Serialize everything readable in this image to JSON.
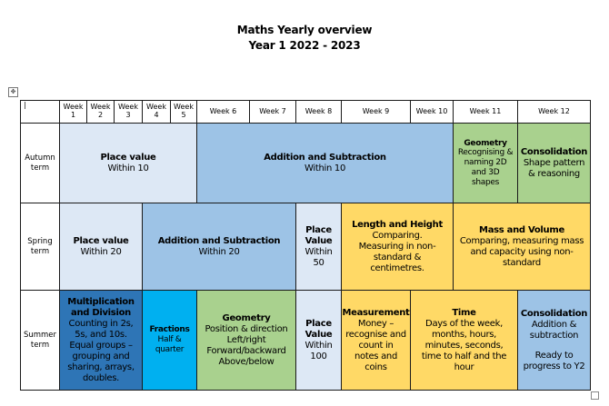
{
  "title": "Maths Yearly overview",
  "subtitle": "Year 1 2022 - 2023",
  "table_move_icon": "four-way-arrow-icon",
  "corner_cell": "|",
  "weeks": [
    {
      "l1": "Week",
      "l2": "1"
    },
    {
      "l1": "Week",
      "l2": "2"
    },
    {
      "l1": "Week",
      "l2": "3"
    },
    {
      "l1": "Week",
      "l2": "4"
    },
    {
      "l1": "Week",
      "l2": "5"
    },
    {
      "l1": "Week 6"
    },
    {
      "l1": "Week 7"
    },
    {
      "l1": "Week 8"
    },
    {
      "l1": "Week 9"
    },
    {
      "l1": "Week 10"
    },
    {
      "l1": "Week 11"
    },
    {
      "l1": "Week 12"
    }
  ],
  "terms": [
    {
      "l1": "Autumn",
      "l2": "term"
    },
    {
      "l1": "Spring",
      "l2": "term"
    },
    {
      "l1": "Summer",
      "l2": "term"
    }
  ],
  "colors": {
    "pale_blue": "#dde8f5",
    "mid_blue": "#9dc3e6",
    "dark_blue": "#2e75b6",
    "bright_blue": "#00b0f0",
    "green": "#a9d18e",
    "yellow": "#ffd966"
  },
  "autumn": {
    "place_value": {
      "title": "Place value",
      "lines": [
        "Within 10"
      ]
    },
    "addition": {
      "title": "Addition and Subtraction",
      "lines": [
        "Within 10"
      ]
    },
    "geometry": {
      "title": "Geometry",
      "lines": [
        "Recognising &",
        "naming 2D",
        "and 3D",
        "shapes"
      ]
    },
    "consolidation": {
      "title": "Consolidation",
      "lines": [
        "Shape pattern",
        "& reasoning"
      ]
    }
  },
  "spring": {
    "place_value": {
      "title": "Place value",
      "lines": [
        "Within 20"
      ]
    },
    "addition": {
      "title": "Addition and Subtraction",
      "lines": [
        "Within 20"
      ]
    },
    "place_value_50": {
      "title_lines": [
        "Place",
        "Value"
      ],
      "lines": [
        "Within",
        "50"
      ]
    },
    "length": {
      "title": "Length and Height",
      "lines": [
        "Comparing.",
        "Measuring in non-",
        "standard &",
        "centimetres."
      ]
    },
    "mass": {
      "title": "Mass and Volume",
      "lines": [
        "Comparing, measuring mass",
        "and capacity using non-",
        "standard"
      ]
    }
  },
  "summer": {
    "multiplication": {
      "title_lines": [
        "Multiplication",
        "and Division"
      ],
      "lines": [
        "Counting in 2s,",
        "5s, and 10s.",
        "Equal groups –",
        "grouping and",
        "sharing, arrays,",
        "doubles."
      ]
    },
    "fractions": {
      "title": "Fractions",
      "lines": [
        "Half &",
        "quarter"
      ]
    },
    "geometry": {
      "title": "Geometry",
      "lines": [
        "Position & direction",
        "Left/right",
        "Forward/backward",
        "Above/below"
      ]
    },
    "place_value": {
      "title_lines": [
        "Place",
        "Value"
      ],
      "lines": [
        "Within",
        "100"
      ]
    },
    "measurement": {
      "title": "Measurement",
      "lines": [
        "Money –",
        "recognise and",
        "count in",
        "notes and",
        "coins"
      ]
    },
    "time": {
      "title": "Time",
      "lines": [
        "Days of the week,",
        "months, hours,",
        "minutes, seconds,",
        "time to half and the",
        "hour"
      ]
    },
    "consolidation": {
      "title": "Consolidation",
      "lines": [
        "Addition &",
        "subtraction"
      ],
      "lines2": [
        "Ready to",
        "progress to Y2"
      ]
    }
  }
}
